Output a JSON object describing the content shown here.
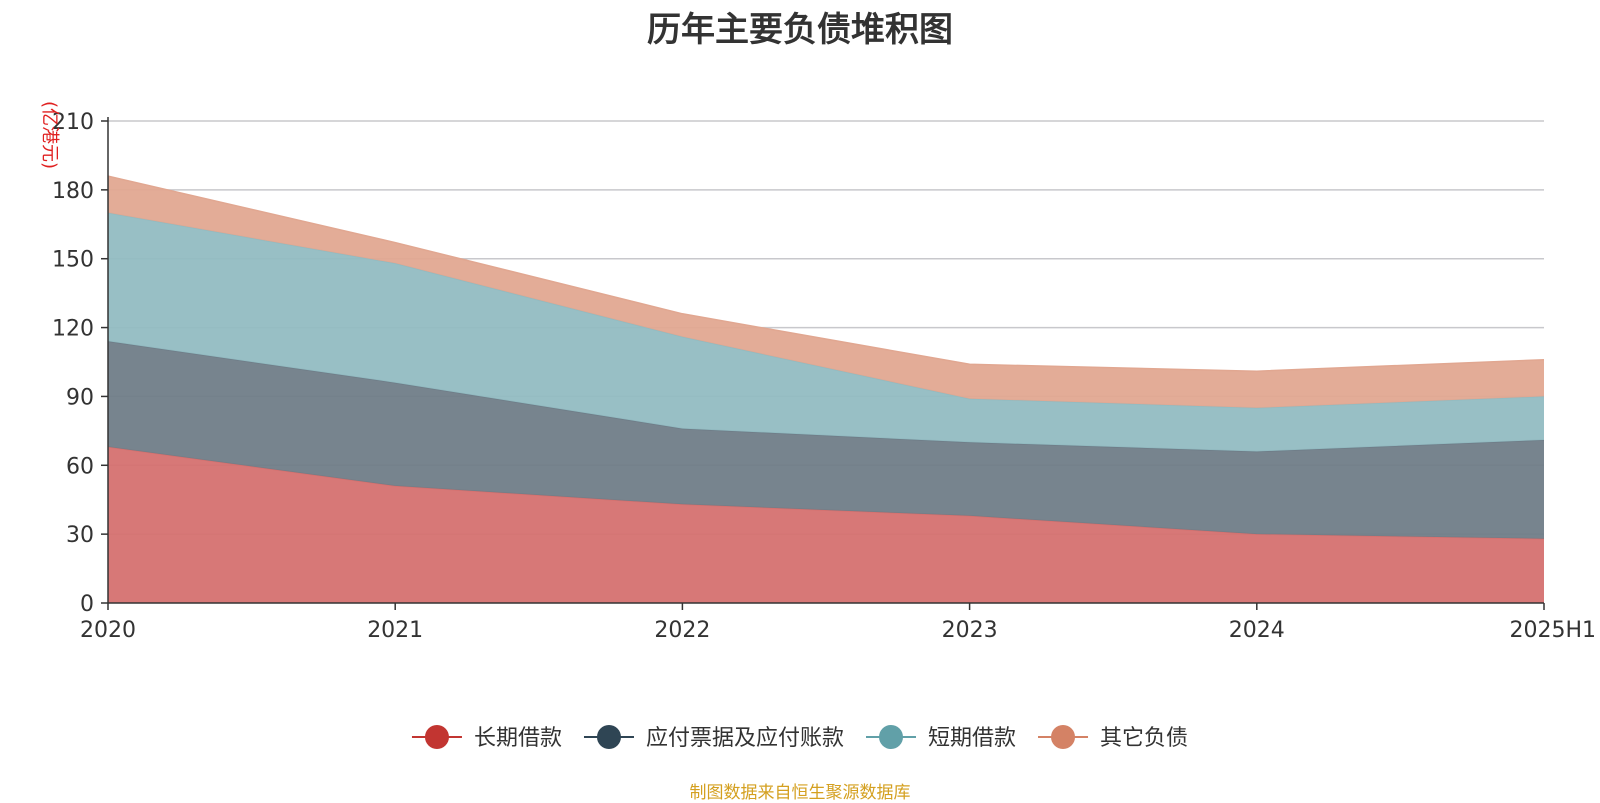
{
  "chart_data": {
    "type": "area",
    "stacked": true,
    "title": "历年主要负债堆积图",
    "unit_label": "(亿港元)",
    "categories": [
      "2020",
      "2021",
      "2022",
      "2023",
      "2024",
      "2025H1"
    ],
    "ylim": [
      0,
      210
    ],
    "yticks": [
      0,
      30,
      60,
      90,
      120,
      150,
      180,
      210
    ],
    "grid": true,
    "legend_position": "bottom-center",
    "series": [
      {
        "name": "长期借款",
        "color": "#c23531",
        "fill": "#d4706e",
        "values": [
          68,
          51,
          43,
          38,
          30,
          28
        ]
      },
      {
        "name": "应付票据及应付账款",
        "color": "#2f4554",
        "fill": "#6e7c87",
        "values": [
          46,
          45,
          33,
          32,
          36,
          43
        ]
      },
      {
        "name": "短期借款",
        "color": "#61a0a8",
        "fill": "#92bbc1",
        "values": [
          56,
          52,
          40,
          19,
          19,
          19
        ]
      },
      {
        "name": "其它负债",
        "color": "#d48265",
        "fill": "#e1a791",
        "values": [
          16,
          9,
          10,
          15,
          16,
          16
        ]
      }
    ],
    "source": "制图数据来自恒生聚源数据库"
  }
}
